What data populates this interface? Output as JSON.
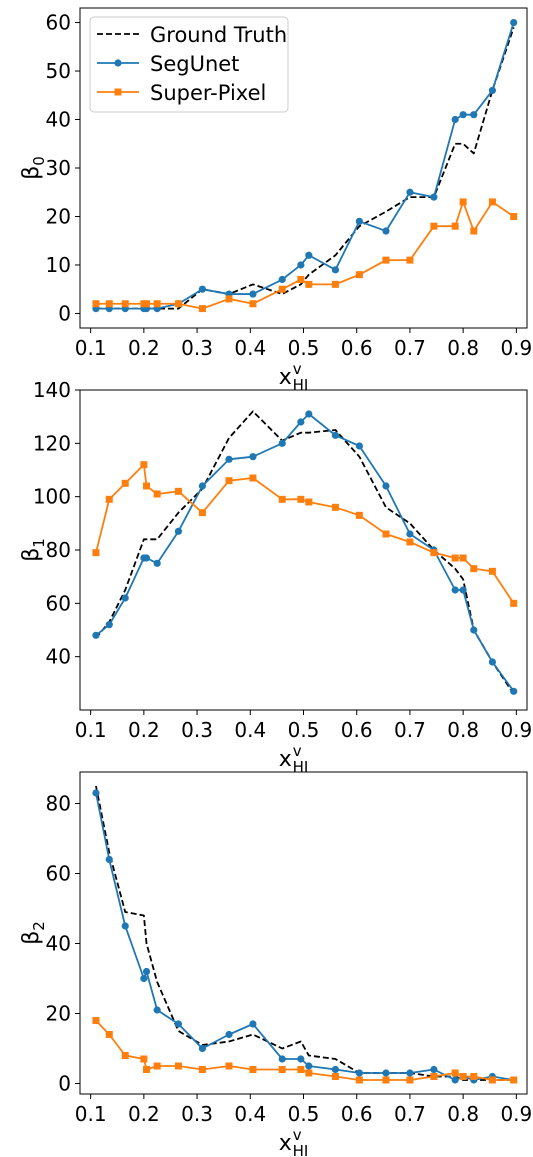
{
  "colors": {
    "ground_truth": "#000000",
    "segunet": "#1f77b4",
    "superpixel": "#ff7f0e"
  },
  "legend": {
    "ground_truth": "Ground Truth",
    "segunet": "SegUnet",
    "superpixel": "Super-Pixel"
  },
  "chart_data": [
    {
      "type": "line",
      "id": "beta0",
      "ylabel": {
        "base": "β",
        "sub": "0"
      },
      "xlabel": {
        "base": "x",
        "sup": "v",
        "sub": "HI"
      },
      "xlim": [
        0.08,
        0.92
      ],
      "ylim": [
        -3,
        63
      ],
      "xticks": [
        0.1,
        0.2,
        0.3,
        0.4,
        0.5,
        0.6,
        0.7,
        0.8,
        0.9
      ],
      "xtick_labels": [
        "0.1",
        "0.2",
        "0.3",
        "0.4",
        "0.5",
        "0.6",
        "0.7",
        "0.8",
        "0.9"
      ],
      "yticks": [
        0,
        10,
        20,
        30,
        40,
        50,
        60
      ],
      "ytick_labels": [
        "0",
        "10",
        "20",
        "30",
        "40",
        "50",
        "60"
      ],
      "legend_position": "upper-left",
      "series": [
        {
          "name": "Ground Truth",
          "key": "ground_truth",
          "style": "dashed",
          "marker": "none",
          "x": [
            0.11,
            0.135,
            0.165,
            0.2,
            0.205,
            0.225,
            0.265,
            0.31,
            0.36,
            0.405,
            0.46,
            0.495,
            0.51,
            0.56,
            0.605,
            0.655,
            0.7,
            0.745,
            0.785,
            0.8,
            0.82,
            0.855,
            0.895
          ],
          "y": [
            1,
            1,
            1,
            1,
            1,
            1,
            1,
            5,
            4,
            6,
            4,
            6,
            8,
            12,
            18,
            21,
            24,
            24,
            35,
            35,
            33,
            46,
            59
          ]
        },
        {
          "name": "SegUnet",
          "key": "segunet",
          "style": "solid",
          "marker": "circle",
          "x": [
            0.11,
            0.135,
            0.165,
            0.2,
            0.205,
            0.225,
            0.265,
            0.31,
            0.36,
            0.405,
            0.46,
            0.495,
            0.51,
            0.56,
            0.605,
            0.655,
            0.7,
            0.745,
            0.785,
            0.8,
            0.82,
            0.855,
            0.895
          ],
          "y": [
            1,
            1,
            1,
            1,
            1,
            1,
            2,
            5,
            4,
            4,
            7,
            10,
            12,
            9,
            19,
            17,
            25,
            24,
            40,
            41,
            41,
            46,
            60
          ]
        },
        {
          "name": "Super-Pixel",
          "key": "superpixel",
          "style": "solid",
          "marker": "square",
          "x": [
            0.11,
            0.135,
            0.165,
            0.2,
            0.205,
            0.225,
            0.265,
            0.31,
            0.36,
            0.405,
            0.46,
            0.495,
            0.51,
            0.56,
            0.605,
            0.655,
            0.7,
            0.745,
            0.785,
            0.8,
            0.82,
            0.855,
            0.895
          ],
          "y": [
            2,
            2,
            2,
            2,
            2,
            2,
            2,
            1,
            3,
            2,
            5,
            7,
            6,
            6,
            8,
            11,
            11,
            18,
            18,
            23,
            17,
            23,
            20
          ]
        }
      ]
    },
    {
      "type": "line",
      "id": "beta1",
      "ylabel": {
        "base": "β",
        "sub": "1"
      },
      "xlabel": {
        "base": "x",
        "sup": "v",
        "sub": "HI"
      },
      "xlim": [
        0.08,
        0.92
      ],
      "ylim": [
        20,
        140
      ],
      "xticks": [
        0.1,
        0.2,
        0.3,
        0.4,
        0.5,
        0.6,
        0.7,
        0.8,
        0.9
      ],
      "xtick_labels": [
        "0.1",
        "0.2",
        "0.3",
        "0.4",
        "0.5",
        "0.6",
        "0.7",
        "0.8",
        "0.9"
      ],
      "yticks": [
        40,
        60,
        80,
        100,
        120,
        140
      ],
      "ytick_labels": [
        "40",
        "60",
        "80",
        "100",
        "120",
        "140"
      ],
      "series": [
        {
          "name": "Ground Truth",
          "key": "ground_truth",
          "style": "dashed",
          "marker": "none",
          "x": [
            0.11,
            0.135,
            0.165,
            0.2,
            0.205,
            0.225,
            0.265,
            0.31,
            0.36,
            0.405,
            0.46,
            0.495,
            0.51,
            0.56,
            0.605,
            0.655,
            0.7,
            0.745,
            0.785,
            0.8,
            0.82,
            0.855,
            0.895
          ],
          "y": [
            47,
            53,
            65,
            84,
            84,
            84,
            94,
            103,
            122,
            132,
            121,
            124,
            124,
            125,
            115,
            96,
            90,
            80,
            73,
            69,
            50,
            38,
            26
          ]
        },
        {
          "name": "SegUnet",
          "key": "segunet",
          "style": "solid",
          "marker": "circle",
          "x": [
            0.11,
            0.135,
            0.165,
            0.2,
            0.205,
            0.225,
            0.265,
            0.31,
            0.36,
            0.405,
            0.46,
            0.495,
            0.51,
            0.56,
            0.605,
            0.655,
            0.7,
            0.745,
            0.785,
            0.8,
            0.82,
            0.855,
            0.895
          ],
          "y": [
            48,
            52,
            62,
            77,
            77,
            75,
            87,
            104,
            114,
            115,
            120,
            128,
            131,
            123,
            119,
            104,
            86,
            80,
            65,
            65,
            50,
            38,
            27
          ]
        },
        {
          "name": "Super-Pixel",
          "key": "superpixel",
          "style": "solid",
          "marker": "square",
          "x": [
            0.11,
            0.135,
            0.165,
            0.2,
            0.205,
            0.225,
            0.265,
            0.31,
            0.36,
            0.405,
            0.46,
            0.495,
            0.51,
            0.56,
            0.605,
            0.655,
            0.7,
            0.745,
            0.785,
            0.8,
            0.82,
            0.855,
            0.895
          ],
          "y": [
            79,
            99,
            105,
            112,
            104,
            101,
            102,
            94,
            106,
            107,
            99,
            99,
            98,
            96,
            93,
            86,
            83,
            79,
            77,
            77,
            73,
            72,
            60
          ]
        }
      ]
    },
    {
      "type": "line",
      "id": "beta2",
      "ylabel": {
        "base": "β",
        "sub": "2"
      },
      "xlabel": {
        "base": "x",
        "sup": "v",
        "sub": "HI"
      },
      "xlim": [
        0.08,
        0.92
      ],
      "ylim": [
        -3,
        89
      ],
      "xticks": [
        0.1,
        0.2,
        0.3,
        0.4,
        0.5,
        0.6,
        0.7,
        0.8,
        0.9
      ],
      "xtick_labels": [
        "0.1",
        "0.2",
        "0.3",
        "0.4",
        "0.5",
        "0.6",
        "0.7",
        "0.8",
        "0.9"
      ],
      "yticks": [
        0,
        20,
        40,
        60,
        80
      ],
      "ytick_labels": [
        "0",
        "20",
        "40",
        "60",
        "80"
      ],
      "series": [
        {
          "name": "Ground Truth",
          "key": "ground_truth",
          "style": "dashed",
          "marker": "none",
          "x": [
            0.11,
            0.135,
            0.165,
            0.2,
            0.205,
            0.225,
            0.265,
            0.31,
            0.36,
            0.405,
            0.46,
            0.495,
            0.51,
            0.56,
            0.605,
            0.655,
            0.7,
            0.745,
            0.785,
            0.8,
            0.82,
            0.855,
            0.895
          ],
          "y": [
            85,
            66,
            49,
            48,
            40,
            29,
            15,
            11,
            12,
            14,
            10,
            12,
            8,
            7,
            3,
            3,
            3,
            2,
            2,
            1,
            1,
            1,
            1
          ]
        },
        {
          "name": "SegUnet",
          "key": "segunet",
          "style": "solid",
          "marker": "circle",
          "x": [
            0.11,
            0.135,
            0.165,
            0.2,
            0.205,
            0.225,
            0.265,
            0.31,
            0.36,
            0.405,
            0.46,
            0.495,
            0.51,
            0.56,
            0.605,
            0.655,
            0.7,
            0.745,
            0.785,
            0.8,
            0.82,
            0.855,
            0.895
          ],
          "y": [
            83,
            64,
            45,
            30,
            32,
            21,
            17,
            10,
            14,
            17,
            7,
            7,
            5,
            4,
            3,
            3,
            3,
            4,
            1,
            2,
            1,
            2,
            1
          ]
        },
        {
          "name": "Super-Pixel",
          "key": "superpixel",
          "style": "solid",
          "marker": "square",
          "x": [
            0.11,
            0.135,
            0.165,
            0.2,
            0.205,
            0.225,
            0.265,
            0.31,
            0.36,
            0.405,
            0.46,
            0.495,
            0.51,
            0.56,
            0.605,
            0.655,
            0.7,
            0.745,
            0.785,
            0.8,
            0.82,
            0.855,
            0.895
          ],
          "y": [
            18,
            14,
            8,
            7,
            4,
            5,
            5,
            4,
            5,
            4,
            4,
            4,
            3,
            2,
            1,
            1,
            1,
            2,
            3,
            2,
            2,
            1,
            1
          ]
        }
      ]
    }
  ]
}
